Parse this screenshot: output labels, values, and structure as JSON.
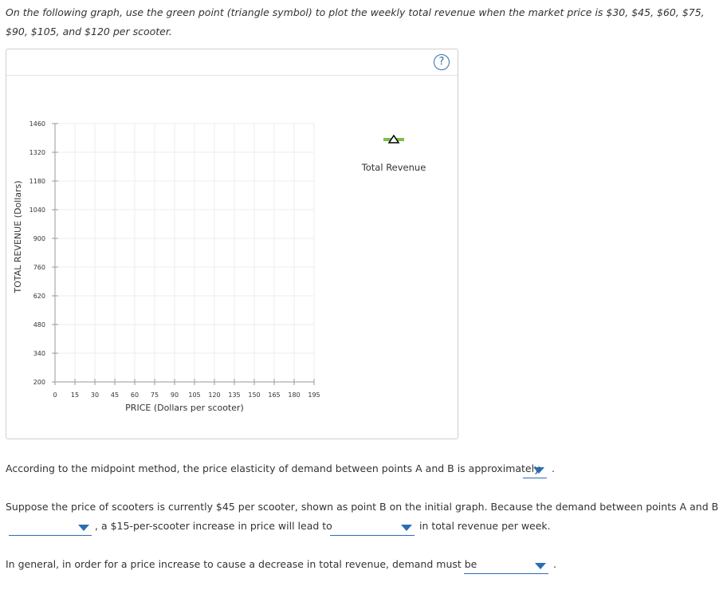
{
  "instructions": "On the following graph, use the green point (triangle symbol) to plot the weekly total revenue when the market price is $30, $45, $60, $75, $90, $105, and $120 per scooter.",
  "help_label": "?",
  "legend": {
    "label": "Total Revenue",
    "marker_color": "#7ac143",
    "icon": "triangle-marker-icon"
  },
  "chart_data": {
    "type": "scatter",
    "xlabel": "PRICE (Dollars per scooter)",
    "ylabel": "TOTAL REVENUE (Dollars)",
    "xlim": [
      0,
      195
    ],
    "ylim": [
      200,
      1460
    ],
    "xticks": [
      "0",
      "15",
      "30",
      "45",
      "60",
      "75",
      "90",
      "105",
      "120",
      "135",
      "150",
      "165",
      "180",
      "195"
    ],
    "yticks": [
      "200",
      "340",
      "480",
      "620",
      "760",
      "900",
      "1040",
      "1180",
      "1320",
      "1460"
    ],
    "series": [
      {
        "name": "Total Revenue",
        "points": []
      }
    ],
    "grid": true
  },
  "questions": {
    "q1_text": "According to the midpoint method, the price elasticity of demand between points A and B is approximately",
    "q1_end": ".",
    "q2_line1": "Suppose the price of scooters is currently $45 per scooter, shown as point B on the initial graph. Because the demand between points A and B is",
    "q2_mid": ", a $15-per-scooter increase in price will lead to",
    "q2_end": "in total revenue per week.",
    "q3_text": "In general, in order for a price increase to cause a decrease in total revenue, demand must be",
    "q3_end": "."
  },
  "colors": {
    "accent": "#2a6db5",
    "grid": "#ececec",
    "axis": "#999999"
  }
}
